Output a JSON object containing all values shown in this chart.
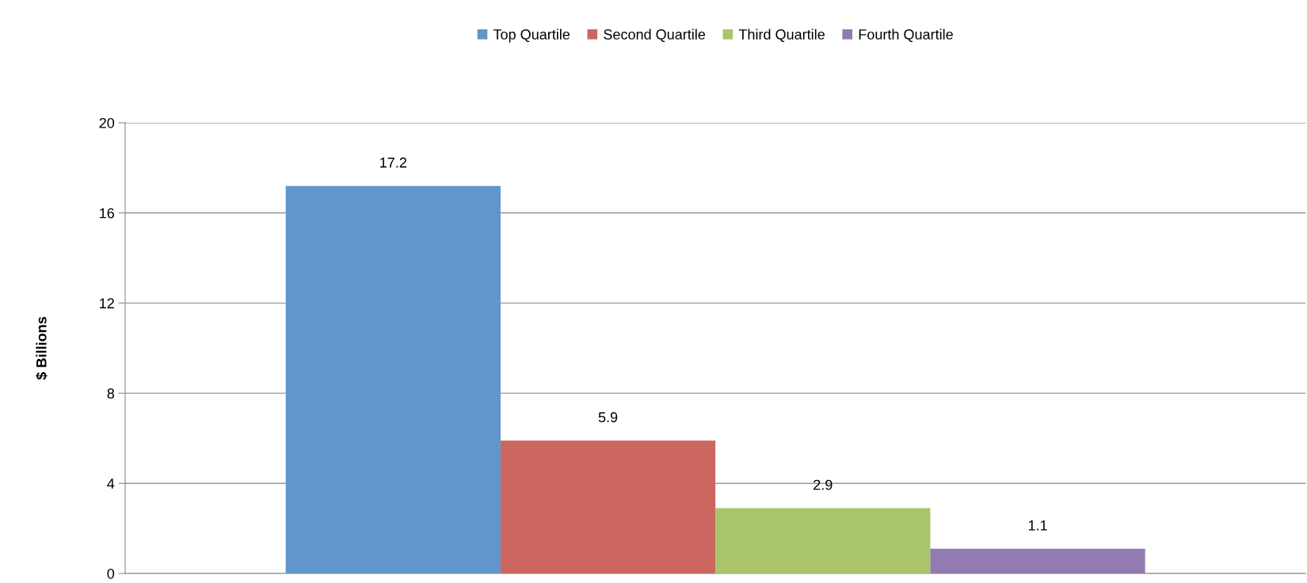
{
  "chart_data": {
    "type": "bar",
    "ylabel": "$ Billions",
    "categories": [
      null
    ],
    "series": [
      {
        "name": "Top Quartile",
        "color": "#6096c9",
        "values": [
          17.2
        ]
      },
      {
        "name": "Second Quartile",
        "color": "#cc6660",
        "values": [
          5.9
        ]
      },
      {
        "name": "Third Quartile",
        "color": "#aac46c",
        "values": [
          2.9
        ]
      },
      {
        "name": "Fourth Quartile",
        "color": "#917bb0",
        "values": [
          1.1
        ]
      }
    ],
    "ylim": [
      0,
      20
    ],
    "yticks": [
      0,
      4,
      8,
      12,
      16,
      20
    ],
    "grid": "y",
    "legend": "top",
    "data_labels": true
  }
}
